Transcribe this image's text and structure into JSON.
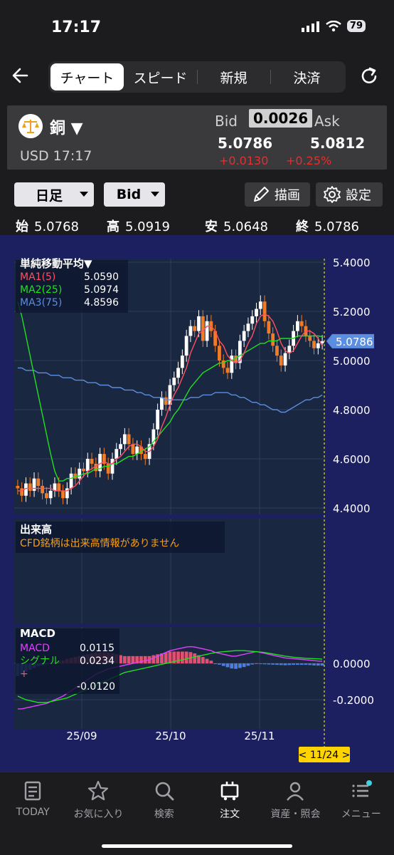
{
  "status": {
    "time": "17:17",
    "battery": "79"
  },
  "nav": {
    "tabs": [
      {
        "label": "チャート",
        "active": true
      },
      {
        "label": "スピード",
        "active": false
      },
      {
        "label": "新規",
        "active": false
      },
      {
        "label": "決済",
        "active": false
      }
    ]
  },
  "quote": {
    "symbol": "銅 ▼",
    "sub": "USD 17:17",
    "bid_label": "Bid",
    "spread": "0.0026",
    "ask_label": "Ask",
    "bid": "5.0786",
    "ask": "5.0812",
    "change": "+0.0130",
    "change_pct": "+0.25%"
  },
  "toolbar": {
    "period": "日足",
    "price_type": "Bid",
    "draw_label": "描画",
    "settings_label": "設定"
  },
  "ohlc": {
    "open_label": "始",
    "open": "5.0768",
    "high_label": "高",
    "high": "5.0919",
    "low_label": "安",
    "low": "5.0648",
    "close_label": "終",
    "close": "5.0786"
  },
  "colors": {
    "chart_bg": "#1c2061",
    "panel_bg": "#1a2740",
    "up": "#ffffff",
    "down": "#f07c28",
    "ma1": "#ff5060",
    "ma2": "#20e020",
    "ma3": "#5b8ee0",
    "macd": "#e040ff",
    "signal": "#20e020",
    "cursor": "#ffd400"
  },
  "chart_data": [
    {
      "type": "candlestick",
      "title": "単純移動平均▼",
      "legend": [
        {
          "name": "MA1(5)",
          "value": "5.0590"
        },
        {
          "name": "MA2(25)",
          "value": "5.0974"
        },
        {
          "name": "MA3(75)",
          "value": "4.8596"
        }
      ],
      "yticks": [
        "5.4000",
        "5.2000",
        "5.0000",
        "4.8000",
        "4.6000",
        "4.4000"
      ],
      "ylim": [
        4.4,
        5.4
      ],
      "xticks": [
        "25/09",
        "25/10",
        "25/11"
      ],
      "last_price": "5.0786",
      "cursor_label": "< 11/24 >",
      "closes": [
        4.48,
        4.45,
        4.5,
        4.47,
        4.52,
        4.49,
        4.46,
        4.44,
        4.47,
        4.5,
        4.47,
        4.44,
        4.48,
        4.54,
        4.52,
        4.56,
        4.55,
        4.6,
        4.58,
        4.55,
        4.62,
        4.58,
        4.54,
        4.6,
        4.64,
        4.66,
        4.7,
        4.66,
        4.62,
        4.65,
        4.62,
        4.6,
        4.66,
        4.72,
        4.8,
        4.85,
        4.82,
        4.9,
        4.93,
        4.97,
        5.02,
        5.1,
        5.14,
        5.12,
        5.18,
        5.08,
        5.16,
        5.12,
        5.06,
        5.0,
        4.97,
        4.95,
        5.02,
        4.99,
        5.08,
        5.12,
        5.15,
        5.18,
        5.21,
        5.24,
        5.16,
        5.11,
        5.06,
        5.02,
        4.98,
        5.03,
        5.06,
        5.12,
        5.16,
        5.14,
        5.1,
        5.08,
        5.05,
        5.07,
        5.0786
      ],
      "ma1_values": [
        4.47,
        4.47,
        4.48,
        4.48,
        4.48,
        4.48,
        4.48,
        4.48,
        4.48,
        4.47,
        4.47,
        4.47,
        4.47,
        4.48,
        4.49,
        4.51,
        4.53,
        4.55,
        4.56,
        4.57,
        4.58,
        4.59,
        4.58,
        4.58,
        4.6,
        4.61,
        4.63,
        4.65,
        4.66,
        4.66,
        4.65,
        4.63,
        4.63,
        4.65,
        4.68,
        4.73,
        4.77,
        4.82,
        4.86,
        4.89,
        4.93,
        4.97,
        5.03,
        5.07,
        5.11,
        5.12,
        5.14,
        5.14,
        5.12,
        5.08,
        5.06,
        5.02,
        5.0,
        4.99,
        5.0,
        5.03,
        5.07,
        5.1,
        5.15,
        5.18,
        5.19,
        5.18,
        5.16,
        5.12,
        5.07,
        5.04,
        5.03,
        5.04,
        5.07,
        5.1,
        5.12,
        5.12,
        5.11,
        5.09,
        5.059
      ],
      "ma2_values": [
        5.24,
        5.18,
        5.1,
        5.02,
        4.94,
        4.86,
        4.78,
        4.7,
        4.62,
        4.55,
        4.51,
        4.51,
        4.52,
        4.52,
        4.53,
        4.53,
        4.54,
        4.54,
        4.55,
        4.56,
        4.56,
        4.57,
        4.57,
        4.58,
        4.58,
        4.59,
        4.6,
        4.61,
        4.61,
        4.62,
        4.63,
        4.64,
        4.65,
        4.67,
        4.69,
        4.71,
        4.73,
        4.75,
        4.78,
        4.8,
        4.83,
        4.86,
        4.89,
        4.91,
        4.93,
        4.95,
        4.96,
        4.97,
        4.98,
        4.99,
        4.99,
        5.0,
        5.0,
        5.01,
        5.02,
        5.03,
        5.04,
        5.05,
        5.06,
        5.07,
        5.07,
        5.08,
        5.08,
        5.08,
        5.09,
        5.09,
        5.09,
        5.09,
        5.1,
        5.1,
        5.1,
        5.1,
        5.1,
        5.1,
        5.0974
      ],
      "ma3_values": [
        4.97,
        4.97,
        4.96,
        4.96,
        4.96,
        4.95,
        4.95,
        4.95,
        4.94,
        4.94,
        4.94,
        4.93,
        4.93,
        4.93,
        4.92,
        4.92,
        4.92,
        4.91,
        4.91,
        4.91,
        4.9,
        4.9,
        4.9,
        4.89,
        4.89,
        4.89,
        4.88,
        4.88,
        4.88,
        4.87,
        4.87,
        4.86,
        4.86,
        4.85,
        4.85,
        4.85,
        4.84,
        4.84,
        4.84,
        4.84,
        4.84,
        4.84,
        4.85,
        4.85,
        4.85,
        4.86,
        4.86,
        4.86,
        4.87,
        4.87,
        4.87,
        4.87,
        4.86,
        4.86,
        4.85,
        4.85,
        4.84,
        4.83,
        4.83,
        4.82,
        4.82,
        4.81,
        4.8,
        4.8,
        4.79,
        4.79,
        4.8,
        4.81,
        4.82,
        4.83,
        4.84,
        4.84,
        4.85,
        4.85,
        4.8596
      ]
    },
    {
      "type": "text-panel",
      "title": "出来高",
      "message": "CFD銘柄は出来高情報がありません"
    },
    {
      "type": "macd",
      "title": "MACD",
      "legend": [
        {
          "name": "MACD",
          "value": "0.0115"
        },
        {
          "name": "シグナル",
          "value": "0.0234"
        },
        {
          "name": "+",
          "value": "-0.0120"
        }
      ],
      "yticks": [
        "0.0000",
        "-0.2000"
      ],
      "ylim": [
        -0.36,
        0.2
      ],
      "macd_values": [
        -0.25,
        -0.25,
        -0.245,
        -0.24,
        -0.235,
        -0.23,
        -0.225,
        -0.22,
        -0.21,
        -0.2,
        -0.19,
        -0.18,
        -0.165,
        -0.15,
        -0.135,
        -0.12,
        -0.105,
        -0.09,
        -0.075,
        -0.06,
        -0.05,
        -0.04,
        -0.03,
        -0.025,
        -0.02,
        -0.015,
        -0.01,
        -0.005,
        0.0,
        0.005,
        0.01,
        0.015,
        0.02,
        0.03,
        0.04,
        0.05,
        0.06,
        0.07,
        0.075,
        0.08,
        0.085,
        0.09,
        0.092,
        0.09,
        0.085,
        0.08,
        0.075,
        0.07,
        0.06,
        0.055,
        0.05,
        0.045,
        0.04,
        0.04,
        0.045,
        0.05,
        0.055,
        0.06,
        0.065,
        0.06,
        0.055,
        0.05,
        0.045,
        0.04,
        0.035,
        0.03,
        0.028,
        0.026,
        0.024,
        0.022,
        0.02,
        0.018,
        0.015,
        0.013,
        0.0115
      ],
      "signal_values": [
        -0.18,
        -0.19,
        -0.2,
        -0.205,
        -0.21,
        -0.215,
        -0.215,
        -0.215,
        -0.21,
        -0.205,
        -0.2,
        -0.195,
        -0.19,
        -0.18,
        -0.17,
        -0.16,
        -0.15,
        -0.14,
        -0.13,
        -0.12,
        -0.11,
        -0.1,
        -0.09,
        -0.08,
        -0.07,
        -0.06,
        -0.05,
        -0.045,
        -0.04,
        -0.035,
        -0.03,
        -0.025,
        -0.02,
        -0.015,
        -0.01,
        -0.005,
        0.0,
        0.005,
        0.01,
        0.015,
        0.02,
        0.025,
        0.03,
        0.035,
        0.04,
        0.045,
        0.05,
        0.055,
        0.06,
        0.062,
        0.064,
        0.066,
        0.068,
        0.07,
        0.07,
        0.07,
        0.068,
        0.066,
        0.064,
        0.062,
        0.06,
        0.056,
        0.052,
        0.048,
        0.044,
        0.04,
        0.037,
        0.034,
        0.032,
        0.03,
        0.028,
        0.027,
        0.026,
        0.025,
        0.0234
      ]
    }
  ],
  "bottom_nav": [
    {
      "label": "TODAY",
      "icon": "news-icon"
    },
    {
      "label": "お気に入り",
      "icon": "star-icon"
    },
    {
      "label": "検索",
      "icon": "search-icon"
    },
    {
      "label": "注文",
      "icon": "order-icon",
      "active": true
    },
    {
      "label": "資産・照会",
      "icon": "person-icon"
    },
    {
      "label": "メニュー",
      "icon": "menu-icon"
    }
  ]
}
